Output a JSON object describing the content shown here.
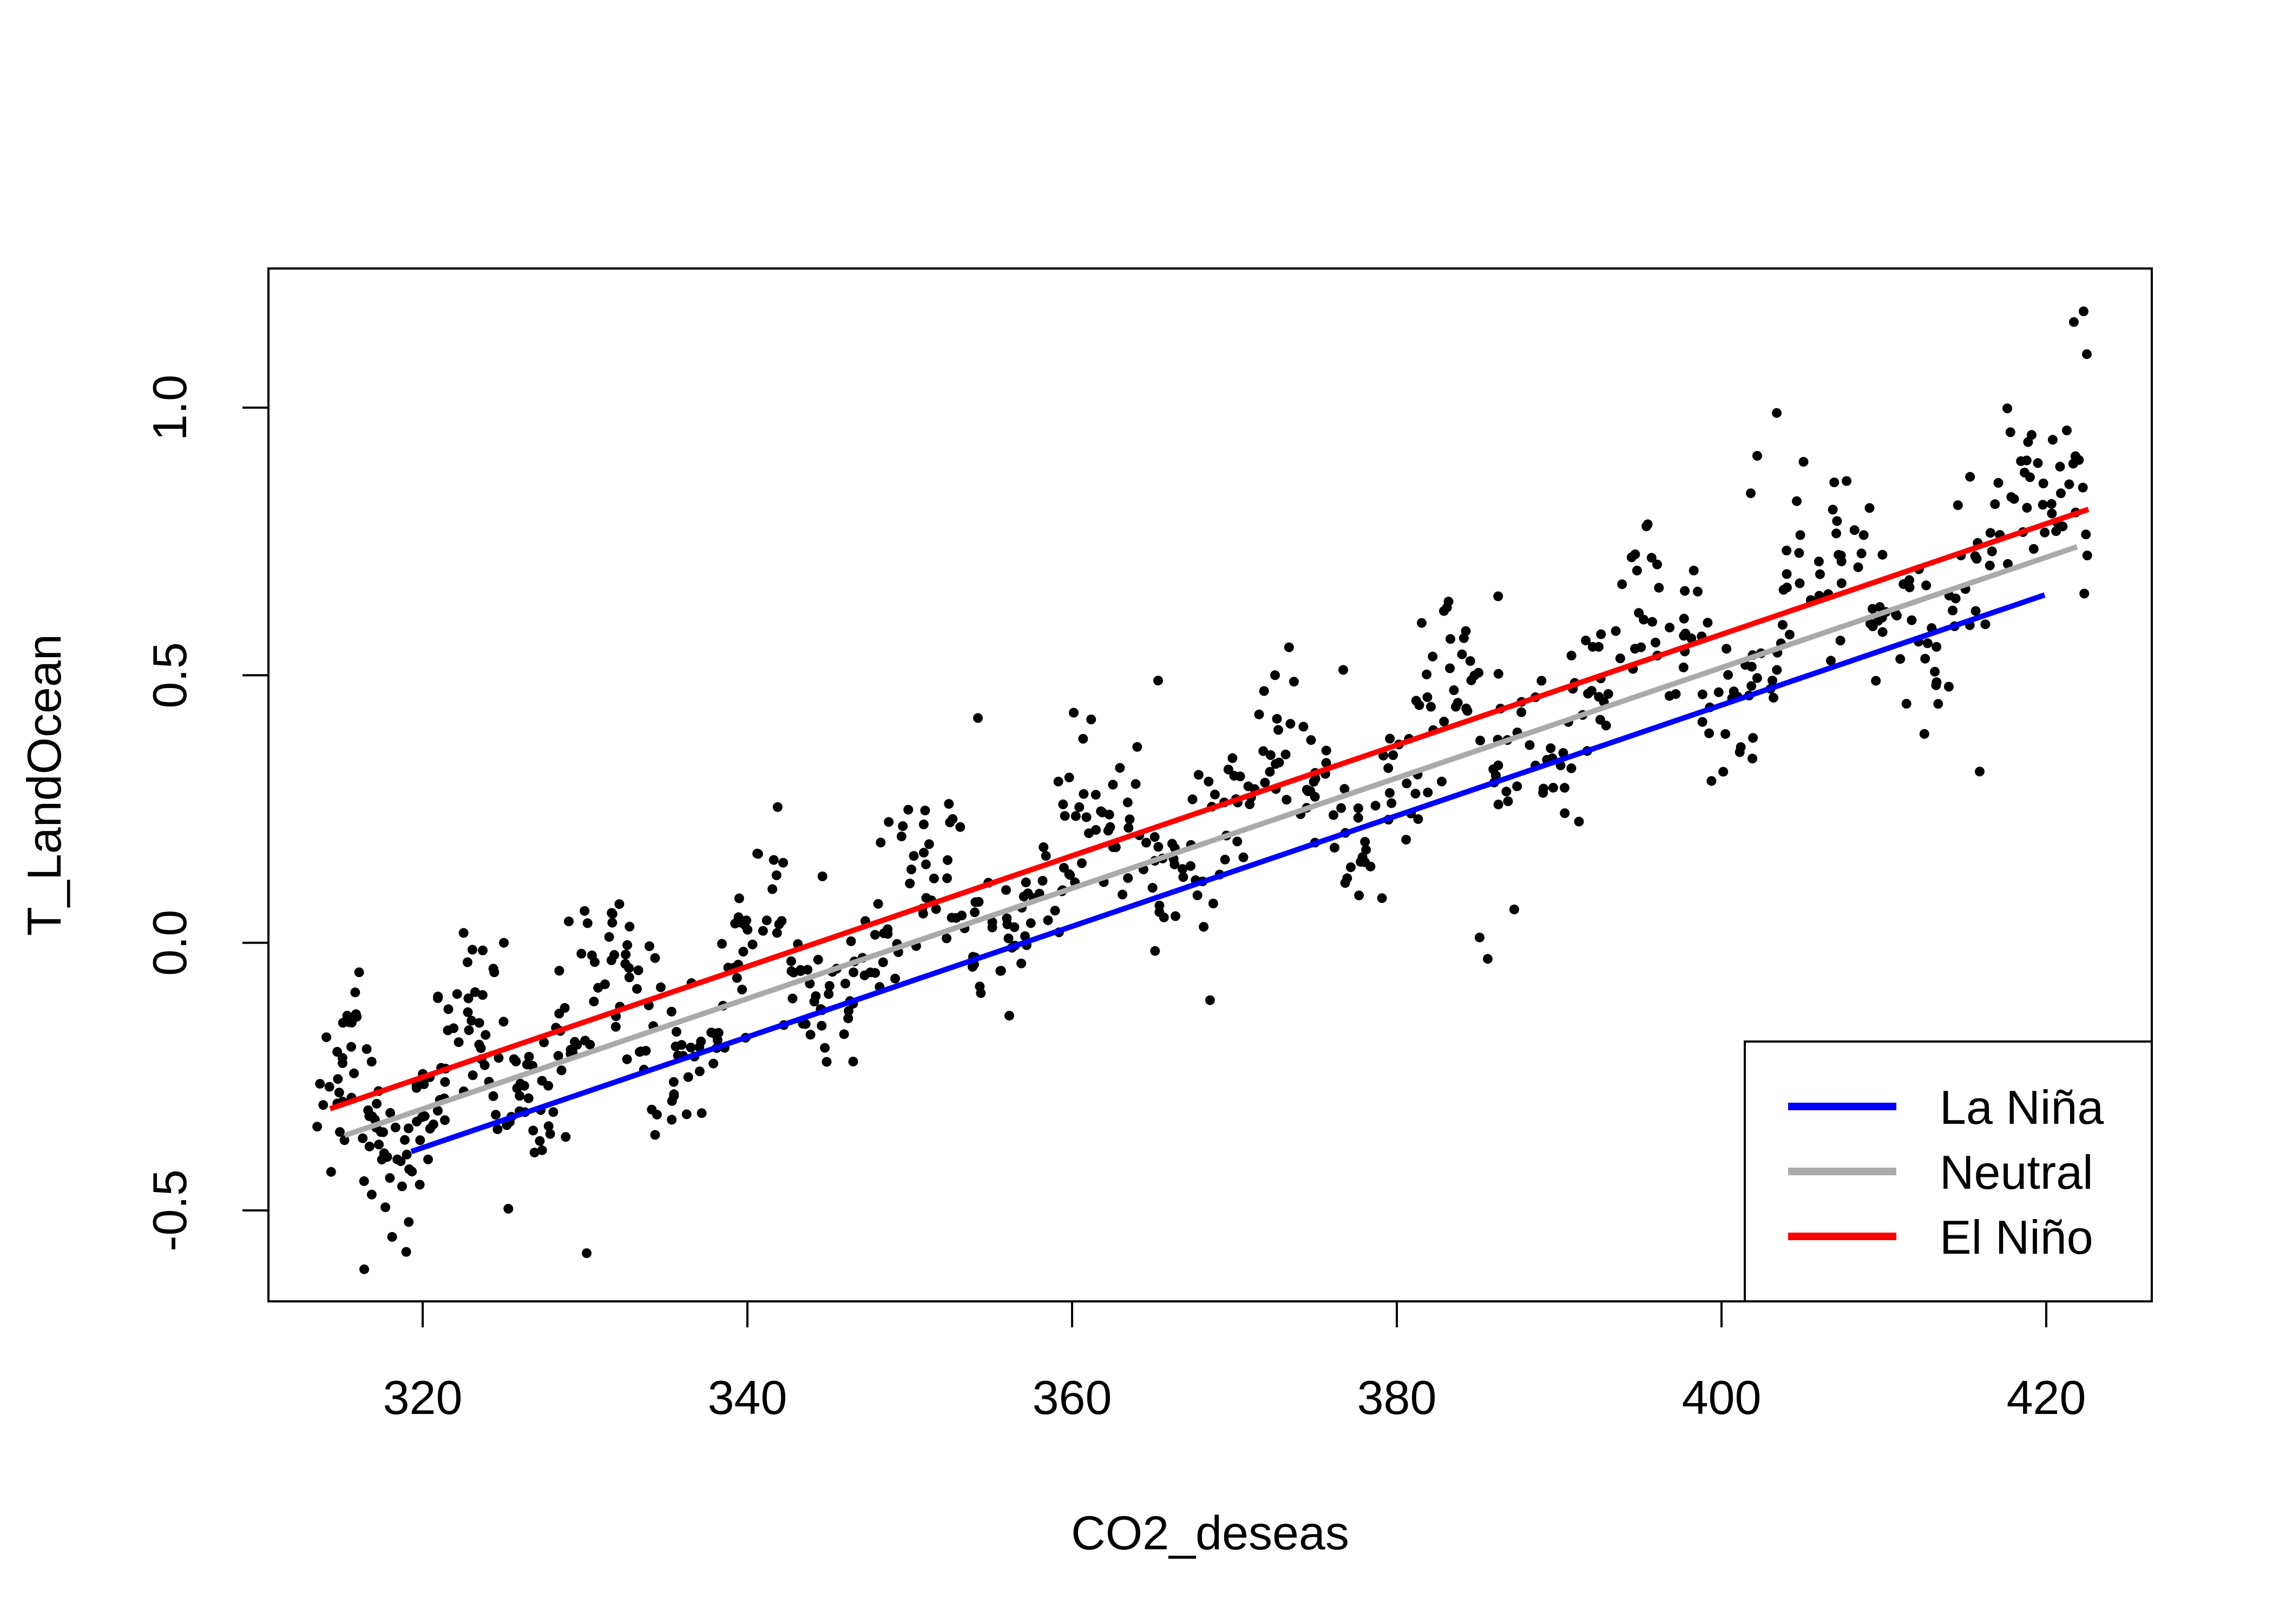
{
  "chart_data": {
    "type": "scatter",
    "title": "",
    "xlabel": "CO2_deseas",
    "ylabel": "T_LandOcean",
    "xlim": [
      310.5,
      426.5
    ],
    "ylim": [
      -0.67,
      1.26
    ],
    "x_ticks": [
      320,
      340,
      360,
      380,
      400,
      420
    ],
    "y_ticks": [
      -0.5,
      0.0,
      0.5,
      1.0
    ],
    "x_tick_labels": [
      "320",
      "340",
      "360",
      "380",
      "400",
      "420"
    ],
    "y_tick_labels": [
      "-0.5",
      "0.0",
      "0.5",
      "1.0"
    ],
    "grid": false,
    "legend_position": "bottom-right",
    "series": [
      {
        "name": "La Niña",
        "kind": "fit-line",
        "color": "#0000ff",
        "x": [
          319.3,
          419.9
        ],
        "y": [
          -0.39,
          0.65
        ]
      },
      {
        "name": "Neutral",
        "kind": "fit-line",
        "color": "#aaaaaa",
        "x": [
          315.2,
          421.9
        ],
        "y": [
          -0.36,
          0.74
        ]
      },
      {
        "name": "El Niño",
        "kind": "fit-line",
        "color": "#ff0000",
        "x": [
          314.3,
          422.6
        ],
        "y": [
          -0.31,
          0.81
        ]
      }
    ],
    "scatter": {
      "color": "#000000",
      "count": 780,
      "x_range": [
        314.3,
        422.6
      ],
      "highlight_points": [
        [
          316.4,
          -0.61
        ],
        [
          330.1,
          -0.58
        ],
        [
          325.0,
          0.0
        ],
        [
          329.0,
          0.04
        ],
        [
          354.2,
          0.42
        ],
        [
          360.1,
          0.43
        ],
        [
          365.3,
          0.49
        ],
        [
          372.5,
          0.5
        ],
        [
          376.7,
          0.51
        ],
        [
          382.9,
          0.62
        ],
        [
          385.6,
          -0.03
        ],
        [
          385.1,
          0.01
        ],
        [
          402.2,
          0.91
        ],
        [
          403.4,
          0.99
        ],
        [
          401.8,
          0.84
        ],
        [
          415.9,
          0.32
        ],
        [
          419.0,
          0.87
        ],
        [
          420.4,
          0.94
        ],
        [
          421.7,
          1.16
        ],
        [
          422.3,
          1.18
        ],
        [
          422.5,
          1.1
        ],
        [
          420.9,
          0.84
        ]
      ]
    }
  }
}
